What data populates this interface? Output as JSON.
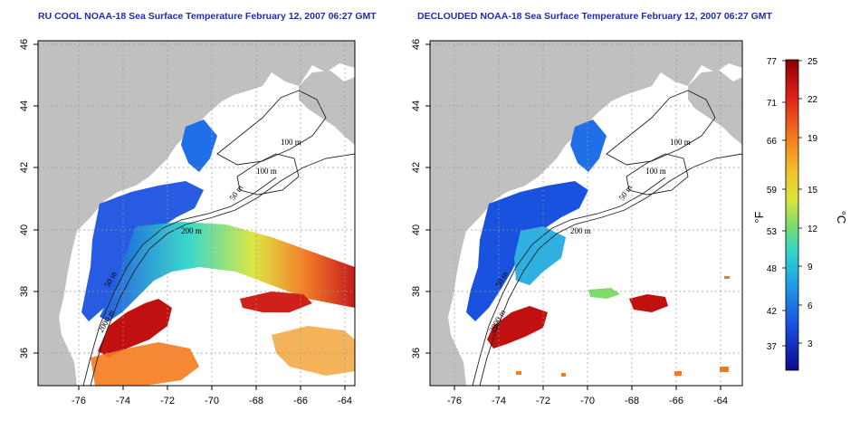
{
  "panels": [
    {
      "id": "raw",
      "title": "RU COOL NOAA-18 Sea Surface Temperature February 12, 2007 06:27 GMT"
    },
    {
      "id": "declouded",
      "title": "DECLOUDED NOAA-18 Sea Surface Temperature February 12, 2007 06:27 GMT"
    }
  ],
  "axes": {
    "lon_ticks": [
      "-76",
      "-74",
      "-72",
      "-70",
      "-68",
      "-66",
      "-64"
    ],
    "lat_ticks": [
      "46",
      "44",
      "42",
      "40",
      "38",
      "36"
    ]
  },
  "contour_labels": {
    "raw": [
      "100 m",
      "100 m",
      "50 m",
      "200 m",
      "50 m",
      "2000 m"
    ],
    "declouded": [
      "100 m",
      "100 m",
      "50 m",
      "200 m",
      "50 m",
      "2000 m"
    ]
  },
  "colorbar": {
    "fahrenheit_ticks": [
      "77",
      "71",
      "66",
      "59",
      "53",
      "48",
      "42",
      "37"
    ],
    "celsius_ticks": [
      "25",
      "22",
      "19",
      "15",
      "12",
      "9",
      "6",
      "3"
    ],
    "fahrenheit_unit": "°F",
    "celsius_unit": "°C",
    "colors": [
      "#8b0000",
      "#e0201b",
      "#f57a1d",
      "#f2c228",
      "#d9e63a",
      "#7fdc6a",
      "#2fd6c8",
      "#1f9fe8",
      "#1a52e0",
      "#0a0a90"
    ]
  },
  "colors": {
    "land": "#c0c0c0",
    "title": "#1f2fa5"
  }
}
